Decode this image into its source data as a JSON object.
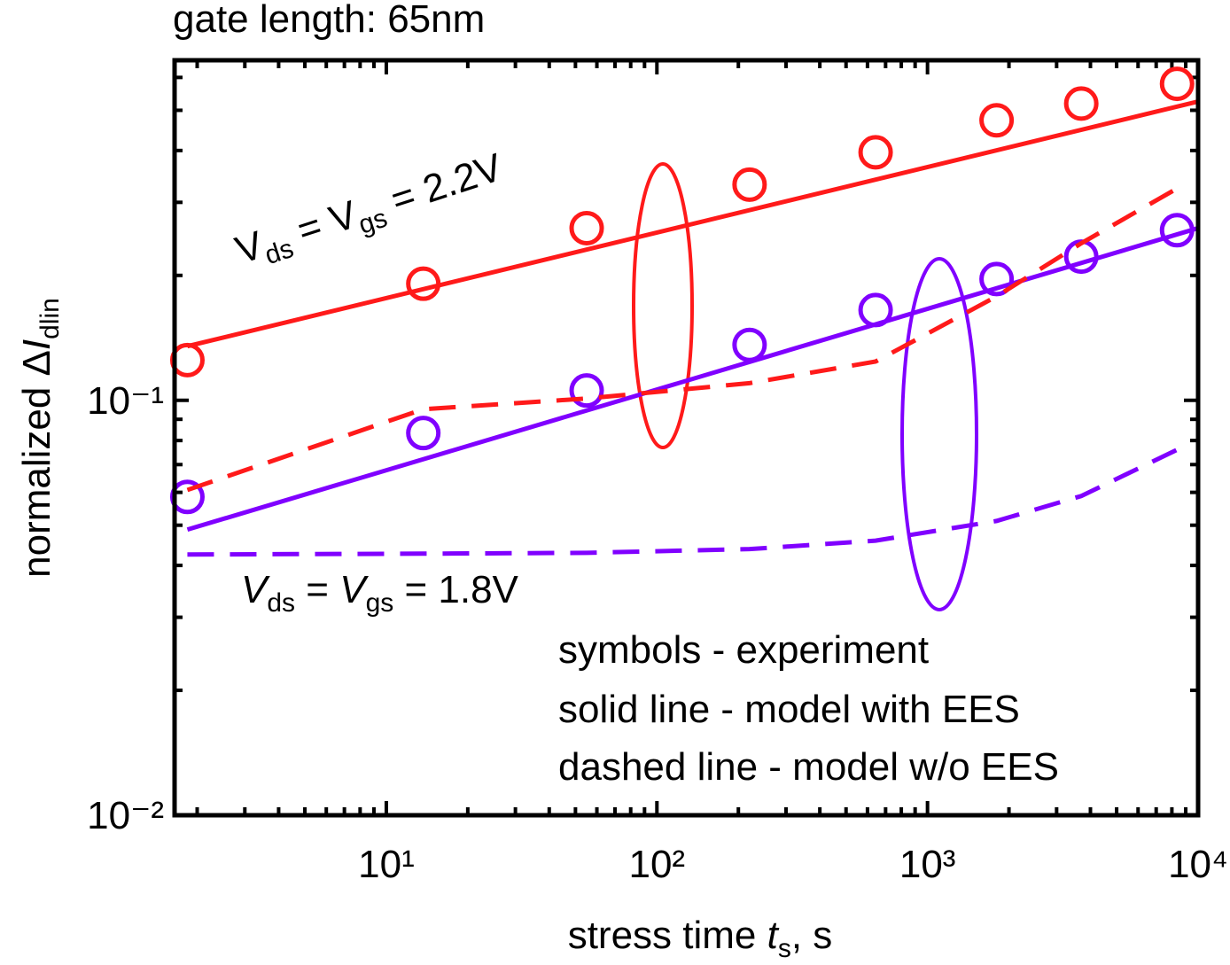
{
  "chart_data": {
    "type": "scatter",
    "title": "gate length: 65nm",
    "x_label_parts": [
      "stress time ",
      "t",
      "s",
      ", s"
    ],
    "y_label_parts": [
      "normalized Δ",
      "I",
      "dlin"
    ],
    "log_x": true,
    "log_y": true,
    "xlim": [
      1.65,
      10000
    ],
    "ylim": [
      0.01,
      0.66
    ],
    "xticks": [
      {
        "value": 10,
        "label": "10¹"
      },
      {
        "value": 100,
        "label": "10²"
      },
      {
        "value": 1000,
        "label": "10³"
      },
      {
        "value": 10000,
        "label": "10⁴"
      }
    ],
    "yticks": [
      {
        "value": 0.01,
        "label": "10⁻²"
      },
      {
        "value": 0.1,
        "label": "10⁻¹"
      }
    ],
    "x_minor_ticks": [
      2,
      3,
      4,
      5,
      6,
      7,
      8,
      9,
      20,
      30,
      40,
      50,
      60,
      70,
      80,
      90,
      200,
      300,
      400,
      500,
      600,
      700,
      800,
      900,
      2000,
      3000,
      4000,
      5000,
      6000,
      7000,
      8000,
      9000
    ],
    "y_minor_ticks": [
      0.02,
      0.03,
      0.04,
      0.05,
      0.06,
      0.07,
      0.08,
      0.09,
      0.2,
      0.3,
      0.4,
      0.5,
      0.6
    ],
    "series": [
      {
        "color": "#ff1a1a",
        "style": "markers",
        "x": [
          1.84,
          13.7,
          55,
          220,
          643,
          1800,
          3700,
          8360
        ],
        "values": [
          0.125,
          0.191,
          0.26,
          0.331,
          0.396,
          0.473,
          0.519,
          0.579
        ]
      },
      {
        "color": "#8000ff",
        "style": "markers",
        "x": [
          1.84,
          13.7,
          55,
          220,
          643,
          1800,
          3700,
          8360
        ],
        "values": [
          0.0585,
          0.0834,
          0.1056,
          0.136,
          0.165,
          0.196,
          0.222,
          0.257
        ]
      },
      {
        "color": "#ff1a1a",
        "style": "solid",
        "x": [
          1.84,
          10000
        ],
        "values": [
          0.135,
          0.525
        ]
      },
      {
        "color": "#8000ff",
        "style": "solid",
        "x": [
          1.84,
          10000
        ],
        "values": [
          0.0488,
          0.26
        ]
      },
      {
        "color": "#ff1a1a",
        "style": "dashed",
        "x": [
          1.84,
          13.7,
          55,
          220,
          643,
          1800,
          3700,
          8710
        ],
        "values": [
          0.0608,
          0.0952,
          0.101,
          0.11,
          0.124,
          0.178,
          0.239,
          0.329
        ]
      },
      {
        "color": "#8000ff",
        "style": "dashed",
        "x": [
          1.84,
          13.7,
          55,
          220,
          643,
          1800,
          3700,
          8710
        ],
        "values": [
          0.0425,
          0.0427,
          0.0429,
          0.0438,
          0.0459,
          0.0512,
          0.0588,
          0.077
        ]
      }
    ],
    "annotations": [
      {
        "parts": [
          "V",
          "ds",
          " = V",
          "gs",
          " = 2.2V"
        ],
        "color": "#ff1a1a"
      },
      {
        "parts": [
          "V",
          "ds",
          " = ",
          "V",
          "gs",
          " = 1.8V"
        ],
        "color": "#8000ff"
      },
      {
        "lines": [
          "symbols - experiment",
          "solid line - model with EES",
          "dashed line - model w/o EES"
        ],
        "color": "#000000"
      }
    ]
  }
}
